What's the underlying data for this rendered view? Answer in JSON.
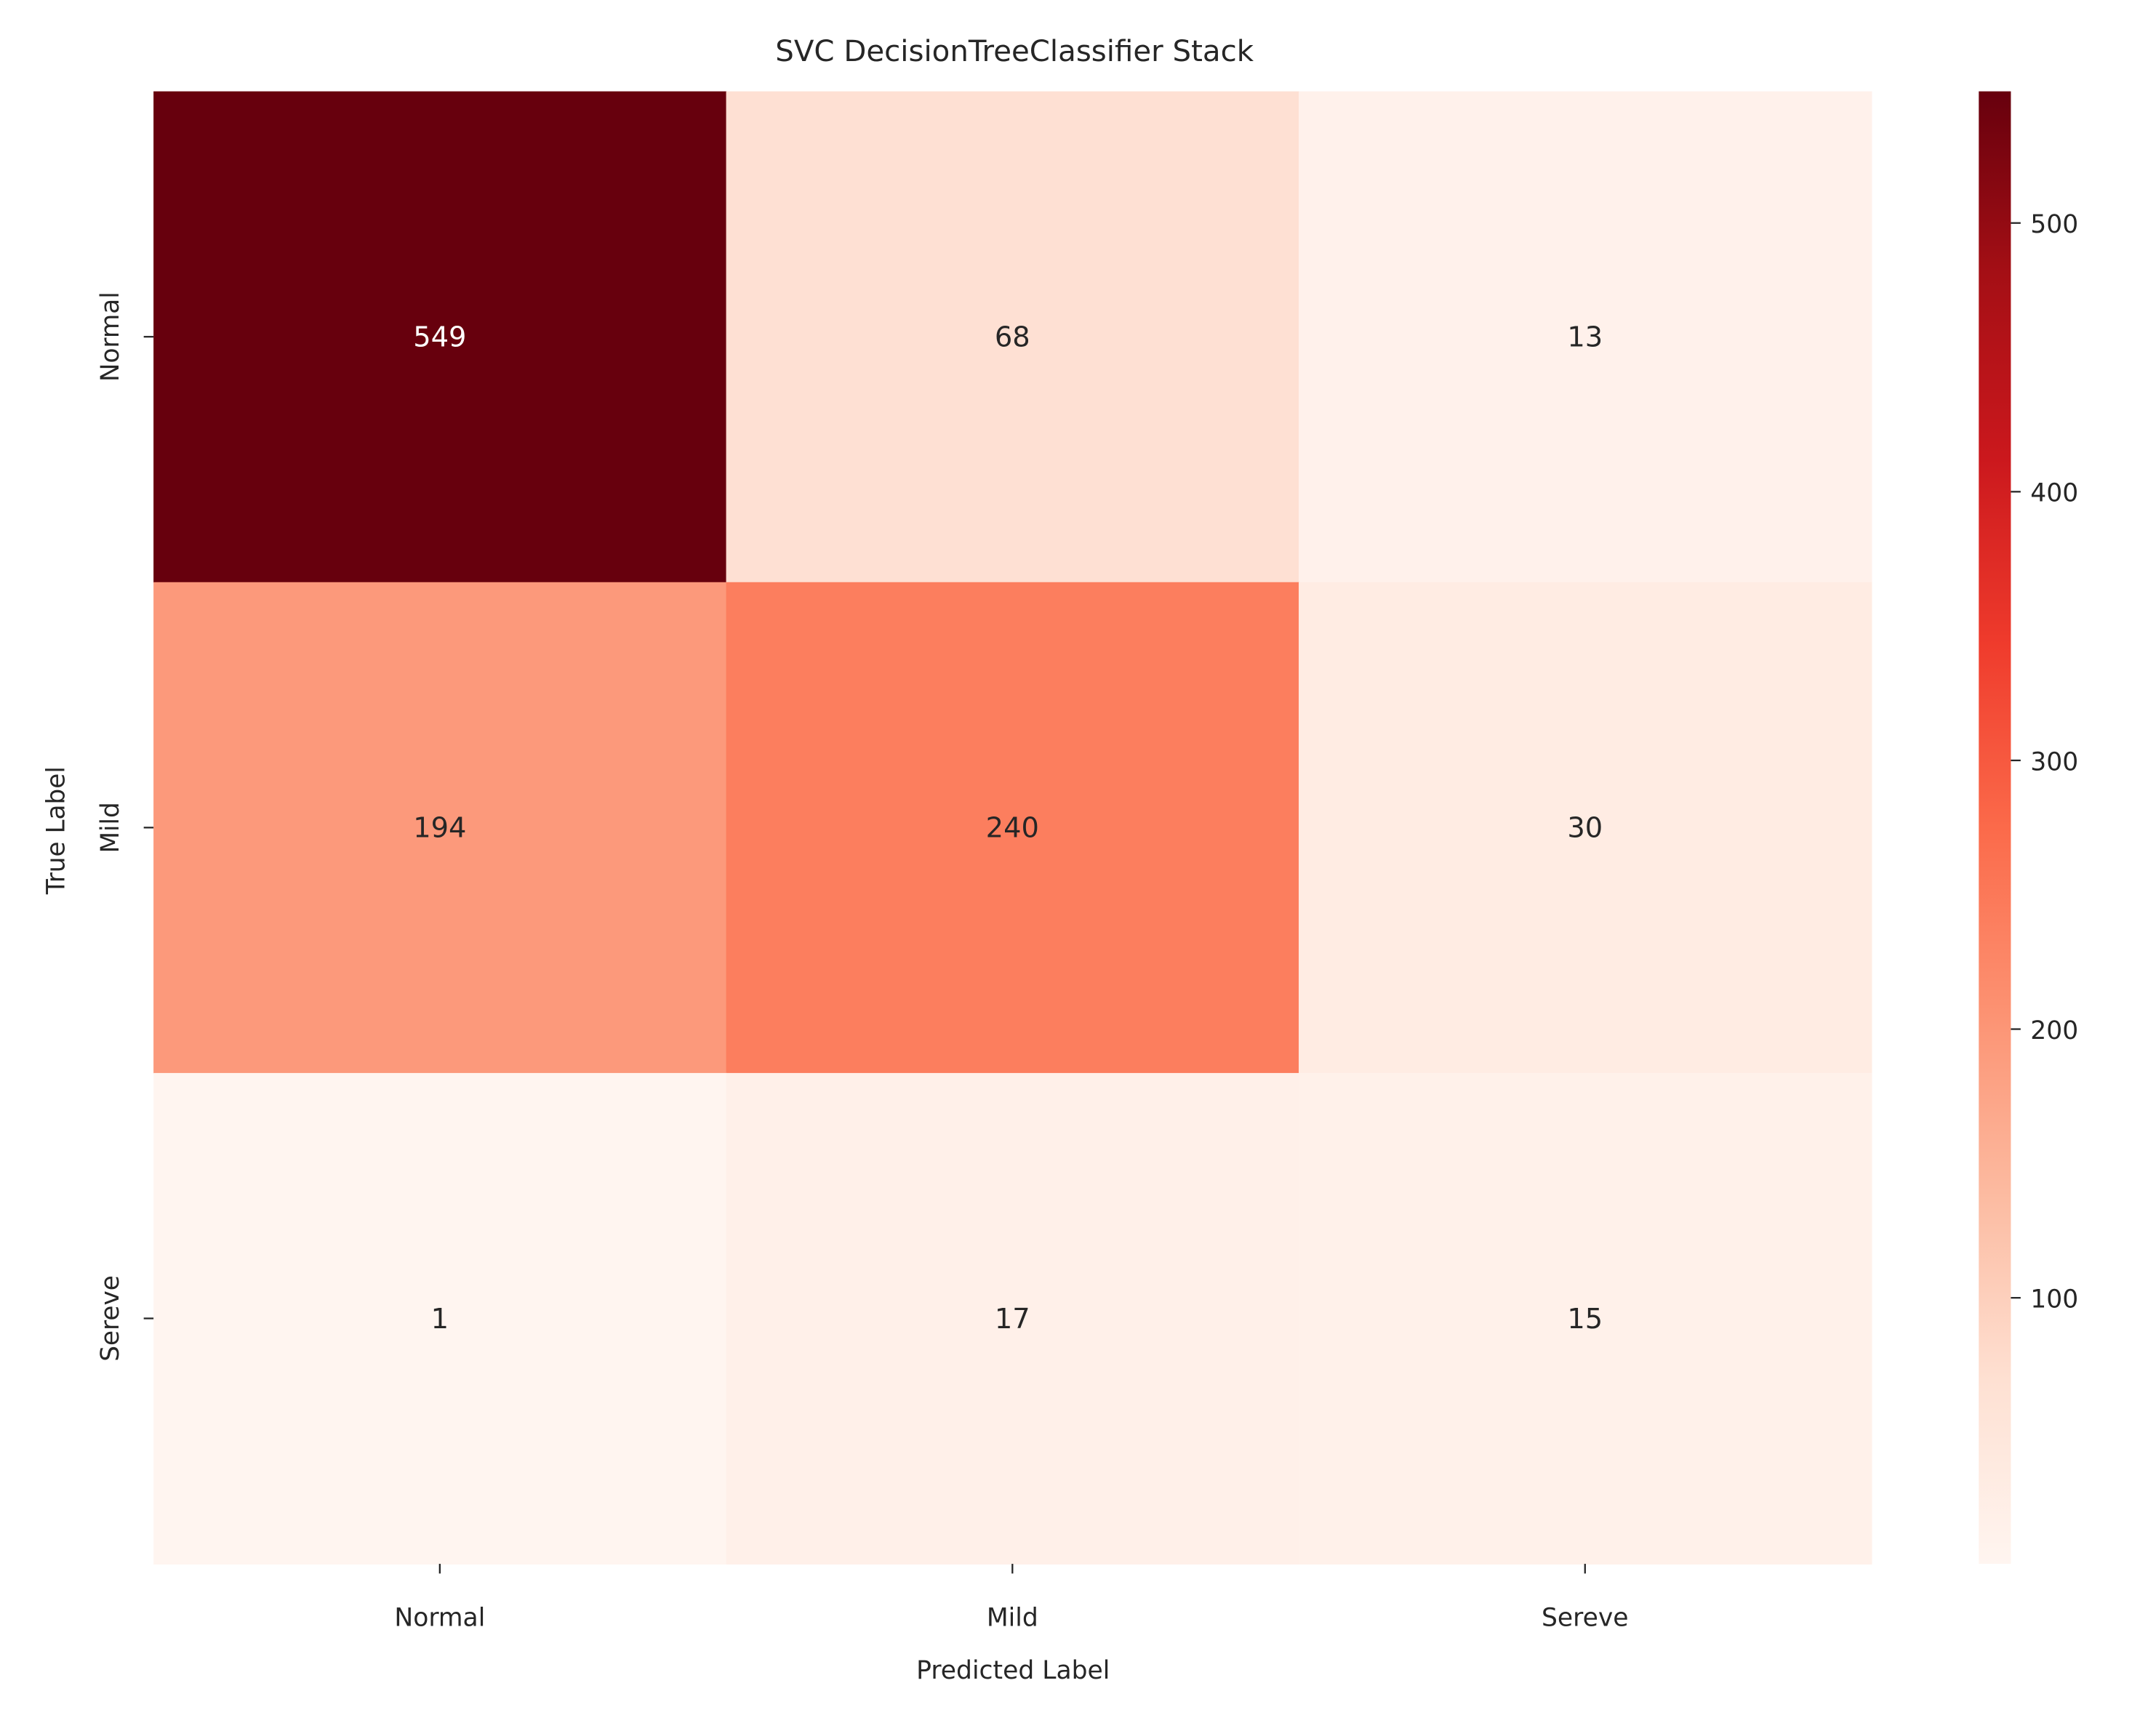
{
  "chart_data": {
    "type": "heatmap",
    "title": "SVC DecisionTreeClassifier Stack",
    "xlabel": "Predicted Label",
    "ylabel": "True Label",
    "x_categories": [
      "Normal",
      "Mild",
      "Sereve"
    ],
    "y_categories": [
      "Normal",
      "Mild",
      "Sereve"
    ],
    "values": [
      [
        549,
        68,
        13
      ],
      [
        194,
        240,
        30
      ],
      [
        1,
        17,
        15
      ]
    ],
    "colormap": "Reds",
    "colorbar": {
      "min": 1,
      "max": 549,
      "ticks": [
        100,
        200,
        300,
        400,
        500
      ],
      "tick_labels": [
        "100",
        "200",
        "300",
        "400",
        "500"
      ]
    },
    "grid": false,
    "legend": "colorbar-right",
    "annotation_colors": {
      "dark": "#262626",
      "light": "#ffffff"
    },
    "colorscale": [
      "#fff5f0",
      "#fee0d2",
      "#fcbba1",
      "#fc9272",
      "#fb6a4a",
      "#ef3b2c",
      "#cb181d",
      "#a50f15",
      "#67000d"
    ]
  }
}
